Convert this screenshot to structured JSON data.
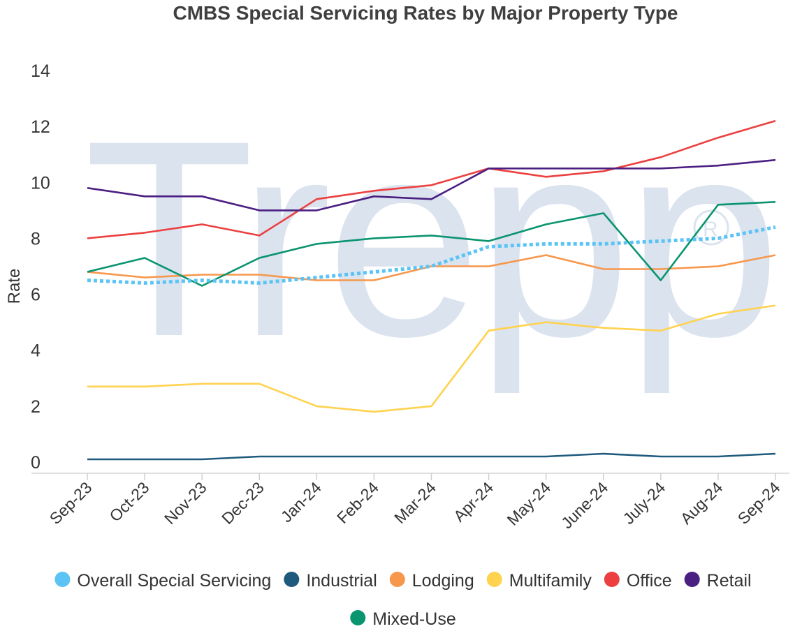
{
  "chart_data": {
    "type": "line",
    "title": "CMBS Special Servicing Rates by Major Property Type",
    "xlabel": "",
    "ylabel": "Rate",
    "ylim": [
      0,
      14
    ],
    "yticks": [
      0,
      2,
      4,
      6,
      8,
      10,
      12,
      14
    ],
    "grid": false,
    "legend_position": "bottom",
    "watermark": "Trepp",
    "categories": [
      "Sep-23",
      "Oct-23",
      "Nov-23",
      "Dec-23",
      "Jan-24",
      "Feb-24",
      "Mar-24",
      "Apr-24",
      "May-24",
      "June-24",
      "July-24",
      "Aug-24",
      "Sep-24"
    ],
    "series": [
      {
        "name": "Overall Special Servicing",
        "color": "#5bc4f5",
        "style": "dotted",
        "values": [
          6.5,
          6.4,
          6.5,
          6.4,
          6.6,
          6.8,
          7.0,
          7.7,
          7.8,
          7.8,
          7.9,
          8.0,
          8.4
        ]
      },
      {
        "name": "Industrial",
        "color": "#1f5a7d",
        "style": "solid",
        "values": [
          0.1,
          0.1,
          0.1,
          0.2,
          0.2,
          0.2,
          0.2,
          0.2,
          0.2,
          0.3,
          0.2,
          0.2,
          0.3
        ]
      },
      {
        "name": "Lodging",
        "color": "#f7974c",
        "style": "solid",
        "values": [
          6.8,
          6.6,
          6.7,
          6.7,
          6.5,
          6.5,
          7.0,
          7.0,
          7.4,
          6.9,
          6.9,
          7.0,
          7.4
        ]
      },
      {
        "name": "Multifamily",
        "color": "#ffd24f",
        "style": "solid",
        "values": [
          2.7,
          2.7,
          2.8,
          2.8,
          2.0,
          1.8,
          2.0,
          4.7,
          5.0,
          4.8,
          4.7,
          5.3,
          5.6
        ]
      },
      {
        "name": "Office",
        "color": "#ec4040",
        "style": "solid",
        "values": [
          8.0,
          8.2,
          8.5,
          8.1,
          9.4,
          9.7,
          9.9,
          10.5,
          10.2,
          10.4,
          10.9,
          11.6,
          12.2
        ]
      },
      {
        "name": "Retail",
        "color": "#4b1f82",
        "style": "solid",
        "values": [
          9.8,
          9.5,
          9.5,
          9.0,
          9.0,
          9.5,
          9.4,
          10.5,
          10.5,
          10.5,
          10.5,
          10.6,
          10.8
        ]
      },
      {
        "name": "Mixed-Use",
        "color": "#0a9470",
        "style": "solid",
        "values": [
          6.8,
          7.3,
          6.3,
          7.3,
          7.8,
          8.0,
          8.1,
          7.9,
          8.5,
          8.9,
          6.5,
          9.2,
          9.3
        ]
      }
    ]
  }
}
